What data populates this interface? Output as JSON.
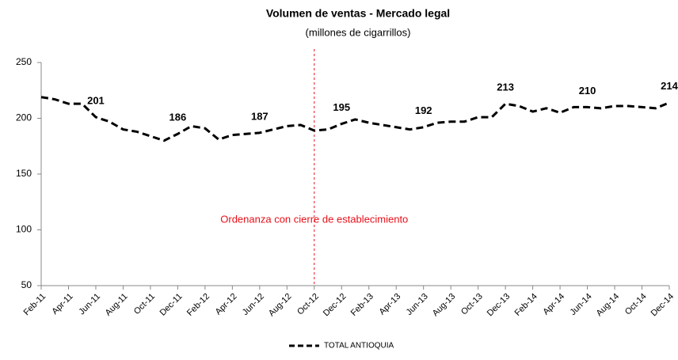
{
  "chart_data": {
    "type": "line",
    "title": "Volumen de ventas - Mercado legal",
    "subtitle": "(millones de cigarrillos)",
    "categories": [
      "Feb-11",
      null,
      "Apr-11",
      null,
      "Jun-11",
      null,
      "Aug-11",
      null,
      "Oct-11",
      null,
      "Dec-11",
      null,
      "Feb-12",
      null,
      "Apr-12",
      null,
      "Jun-12",
      null,
      "Aug-12",
      null,
      "Oct-12",
      null,
      "Dec-12",
      null,
      "Feb-13",
      null,
      "Apr-13",
      null,
      "Jun-13",
      null,
      "Aug-13",
      null,
      "Oct-13",
      null,
      "Dec-13",
      null,
      "Feb-14",
      null,
      "Apr-14",
      null,
      "Jun-14",
      null,
      "Aug-14",
      null,
      "Oct-14",
      null,
      "Dec-14"
    ],
    "series": [
      {
        "name": "TOTAL ANTIOQUIA",
        "color": "#000000",
        "values": [
          219,
          217,
          213,
          213,
          201,
          197,
          190,
          188,
          184,
          180,
          186,
          193,
          191,
          181,
          185,
          186,
          187,
          190,
          193,
          194,
          189,
          190,
          195,
          199,
          196,
          194,
          192,
          190,
          192,
          196,
          197,
          197,
          201,
          201,
          213,
          211,
          206,
          209,
          205,
          210,
          210,
          209,
          211,
          211,
          210,
          209,
          214
        ],
        "value_labels": [
          null,
          null,
          null,
          null,
          201,
          null,
          null,
          null,
          null,
          null,
          186,
          null,
          null,
          null,
          null,
          null,
          187,
          null,
          null,
          null,
          null,
          null,
          195,
          null,
          null,
          null,
          null,
          null,
          192,
          null,
          null,
          null,
          null,
          null,
          213,
          null,
          null,
          null,
          null,
          null,
          210,
          null,
          null,
          null,
          null,
          null,
          214
        ]
      }
    ],
    "ylim": [
      50,
      250
    ],
    "yticks": [
      50,
      100,
      150,
      200,
      250
    ],
    "grid": false,
    "vline": {
      "category_index": 20,
      "label": "Ordenanza con cierre de establecimiento",
      "color": "#e8101a"
    },
    "legend": "bottom"
  }
}
